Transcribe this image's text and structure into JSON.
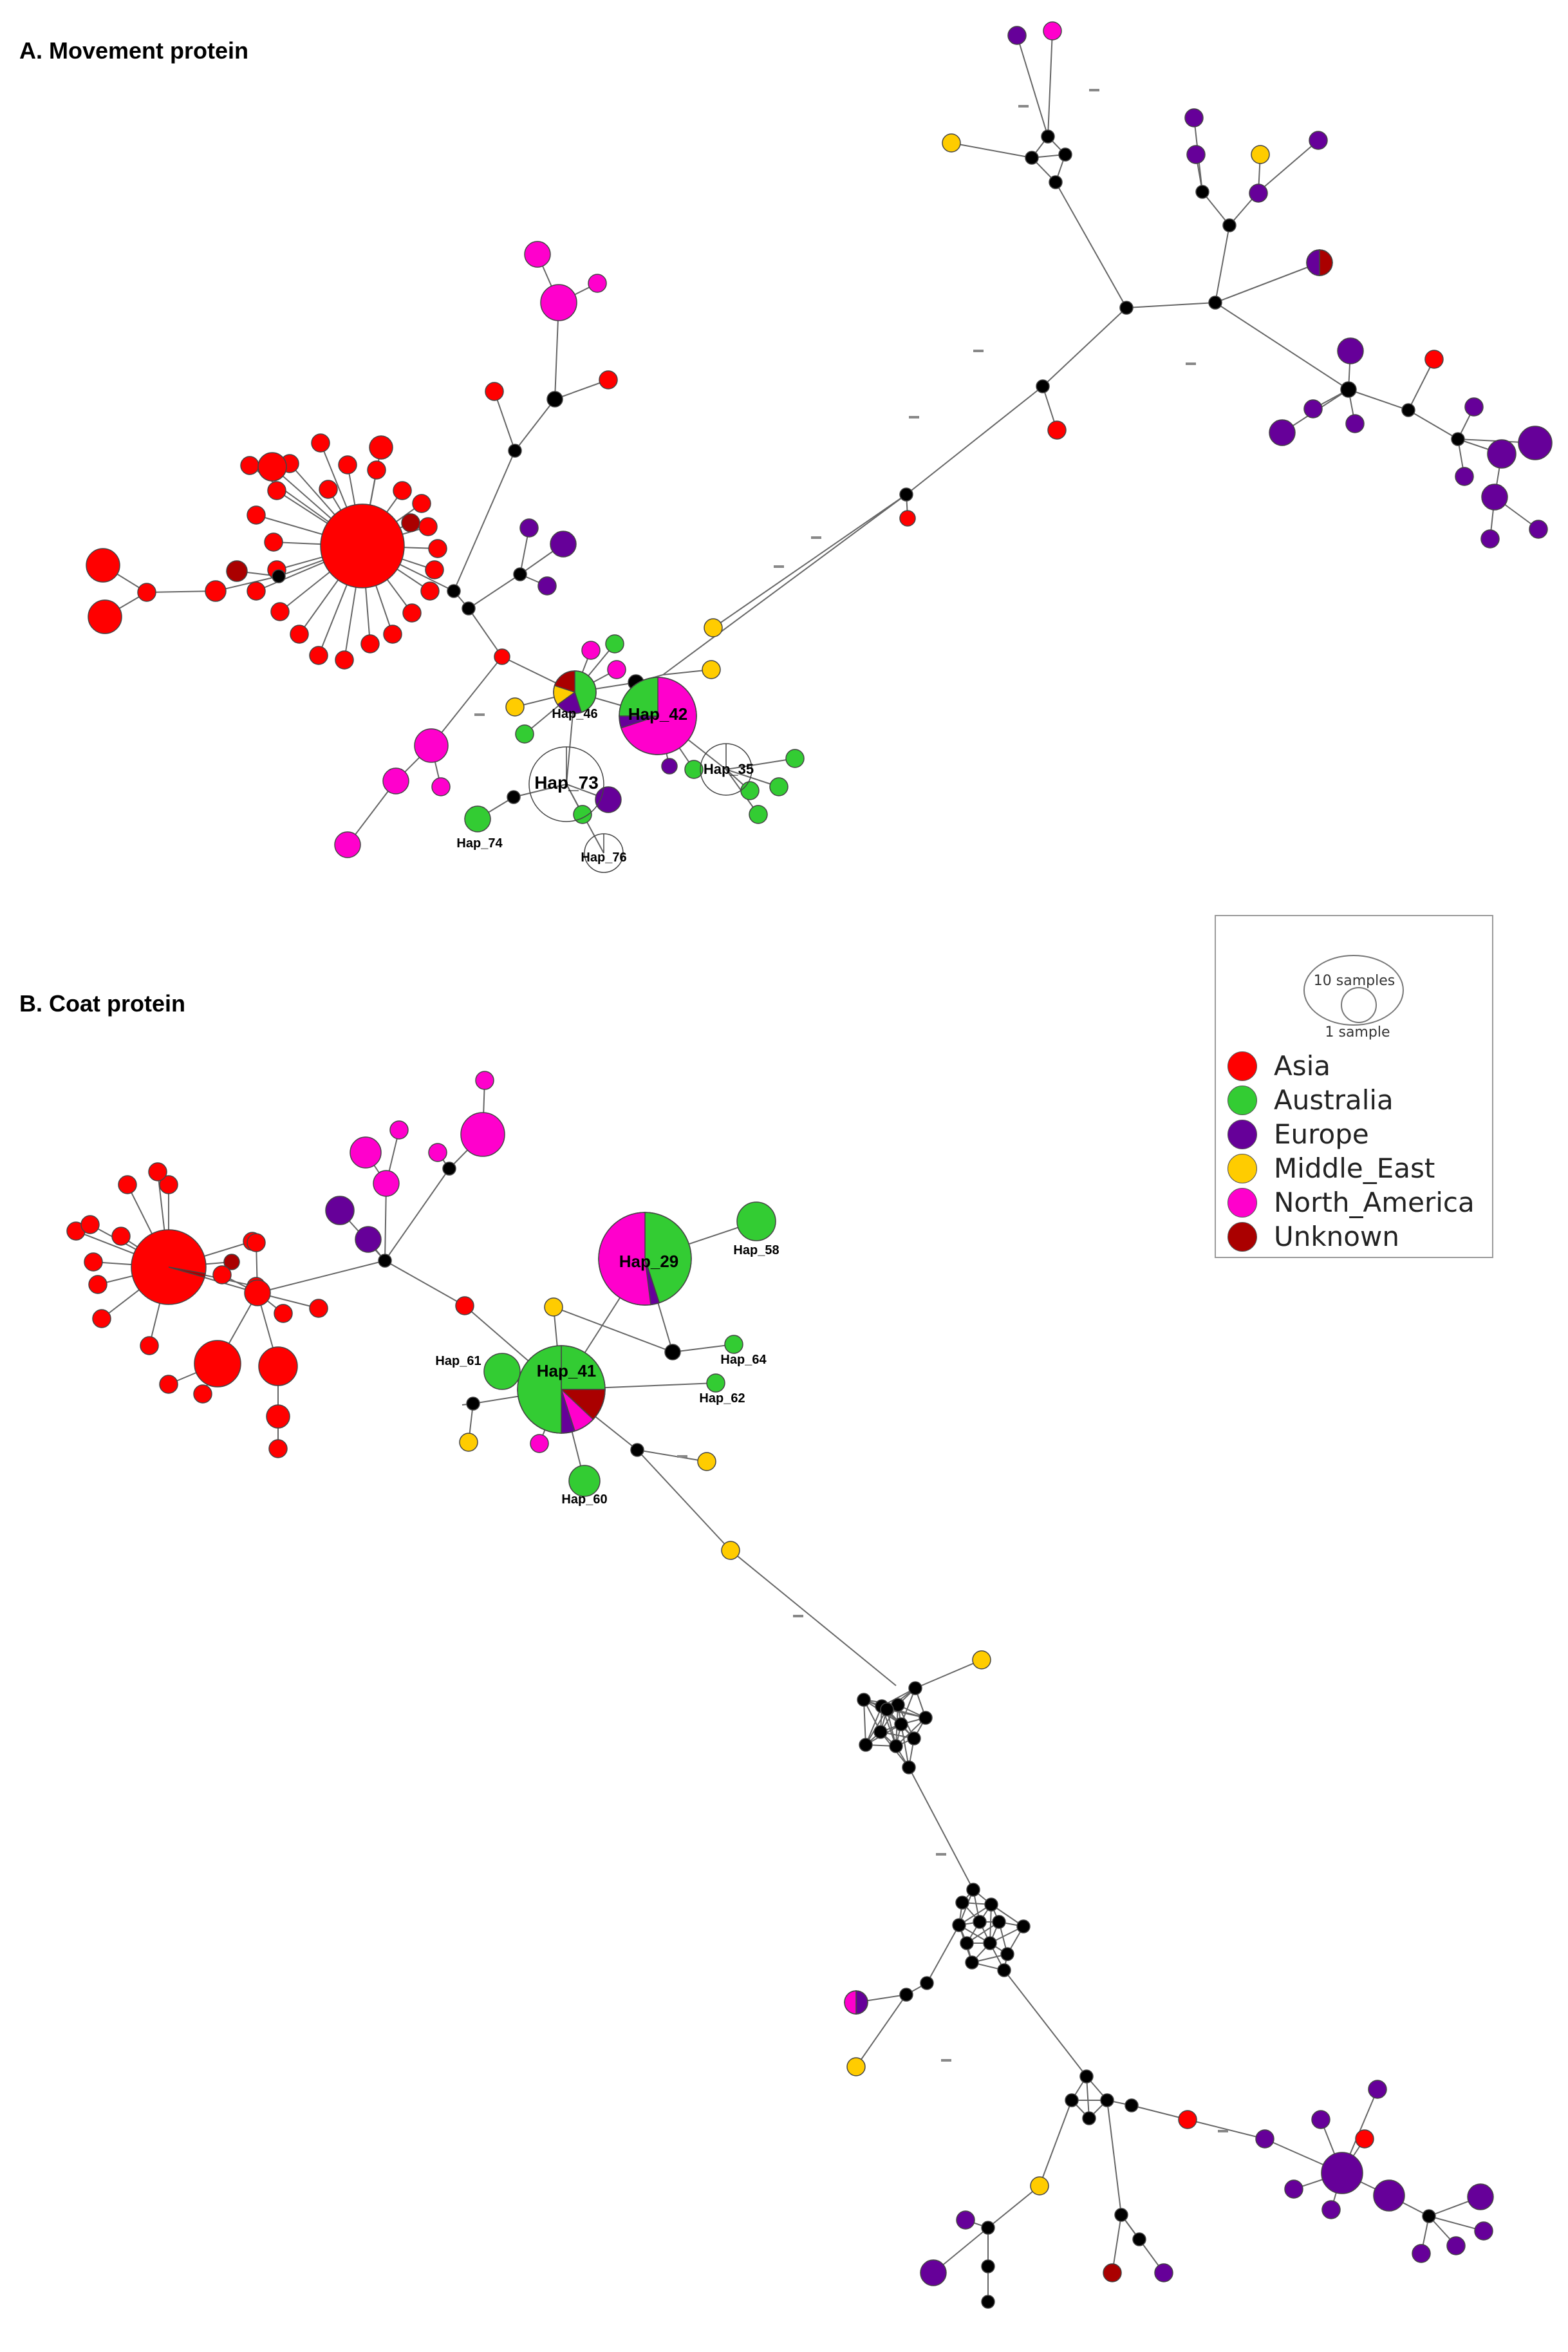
{
  "panels": {
    "a_title": "A. Movement protein",
    "b_title": "B. Coat protein"
  },
  "legend": {
    "size_big_label": "10 samples",
    "size_small_label": "1 sample",
    "items": [
      {
        "label": "Asia",
        "color": "#ff0000"
      },
      {
        "label": "Australia",
        "color": "#33cc33"
      },
      {
        "label": "Europe",
        "color": "#660099"
      },
      {
        "label": "Middle_East",
        "color": "#ffcc00"
      },
      {
        "label": "North_America",
        "color": "#ff00cc"
      },
      {
        "label": "Unknown",
        "color": "#aa0000"
      }
    ]
  },
  "haplotype_labels": {
    "a": [
      "Hap_46",
      "Hap_42",
      "Hap_73",
      "Hap_35",
      "Hap_74",
      "Hap_76"
    ],
    "b": [
      "Hap_29",
      "Hap_58",
      "Hap_41",
      "Hap_61",
      "Hap_64",
      "Hap_62",
      "Hap_60"
    ]
  }
}
